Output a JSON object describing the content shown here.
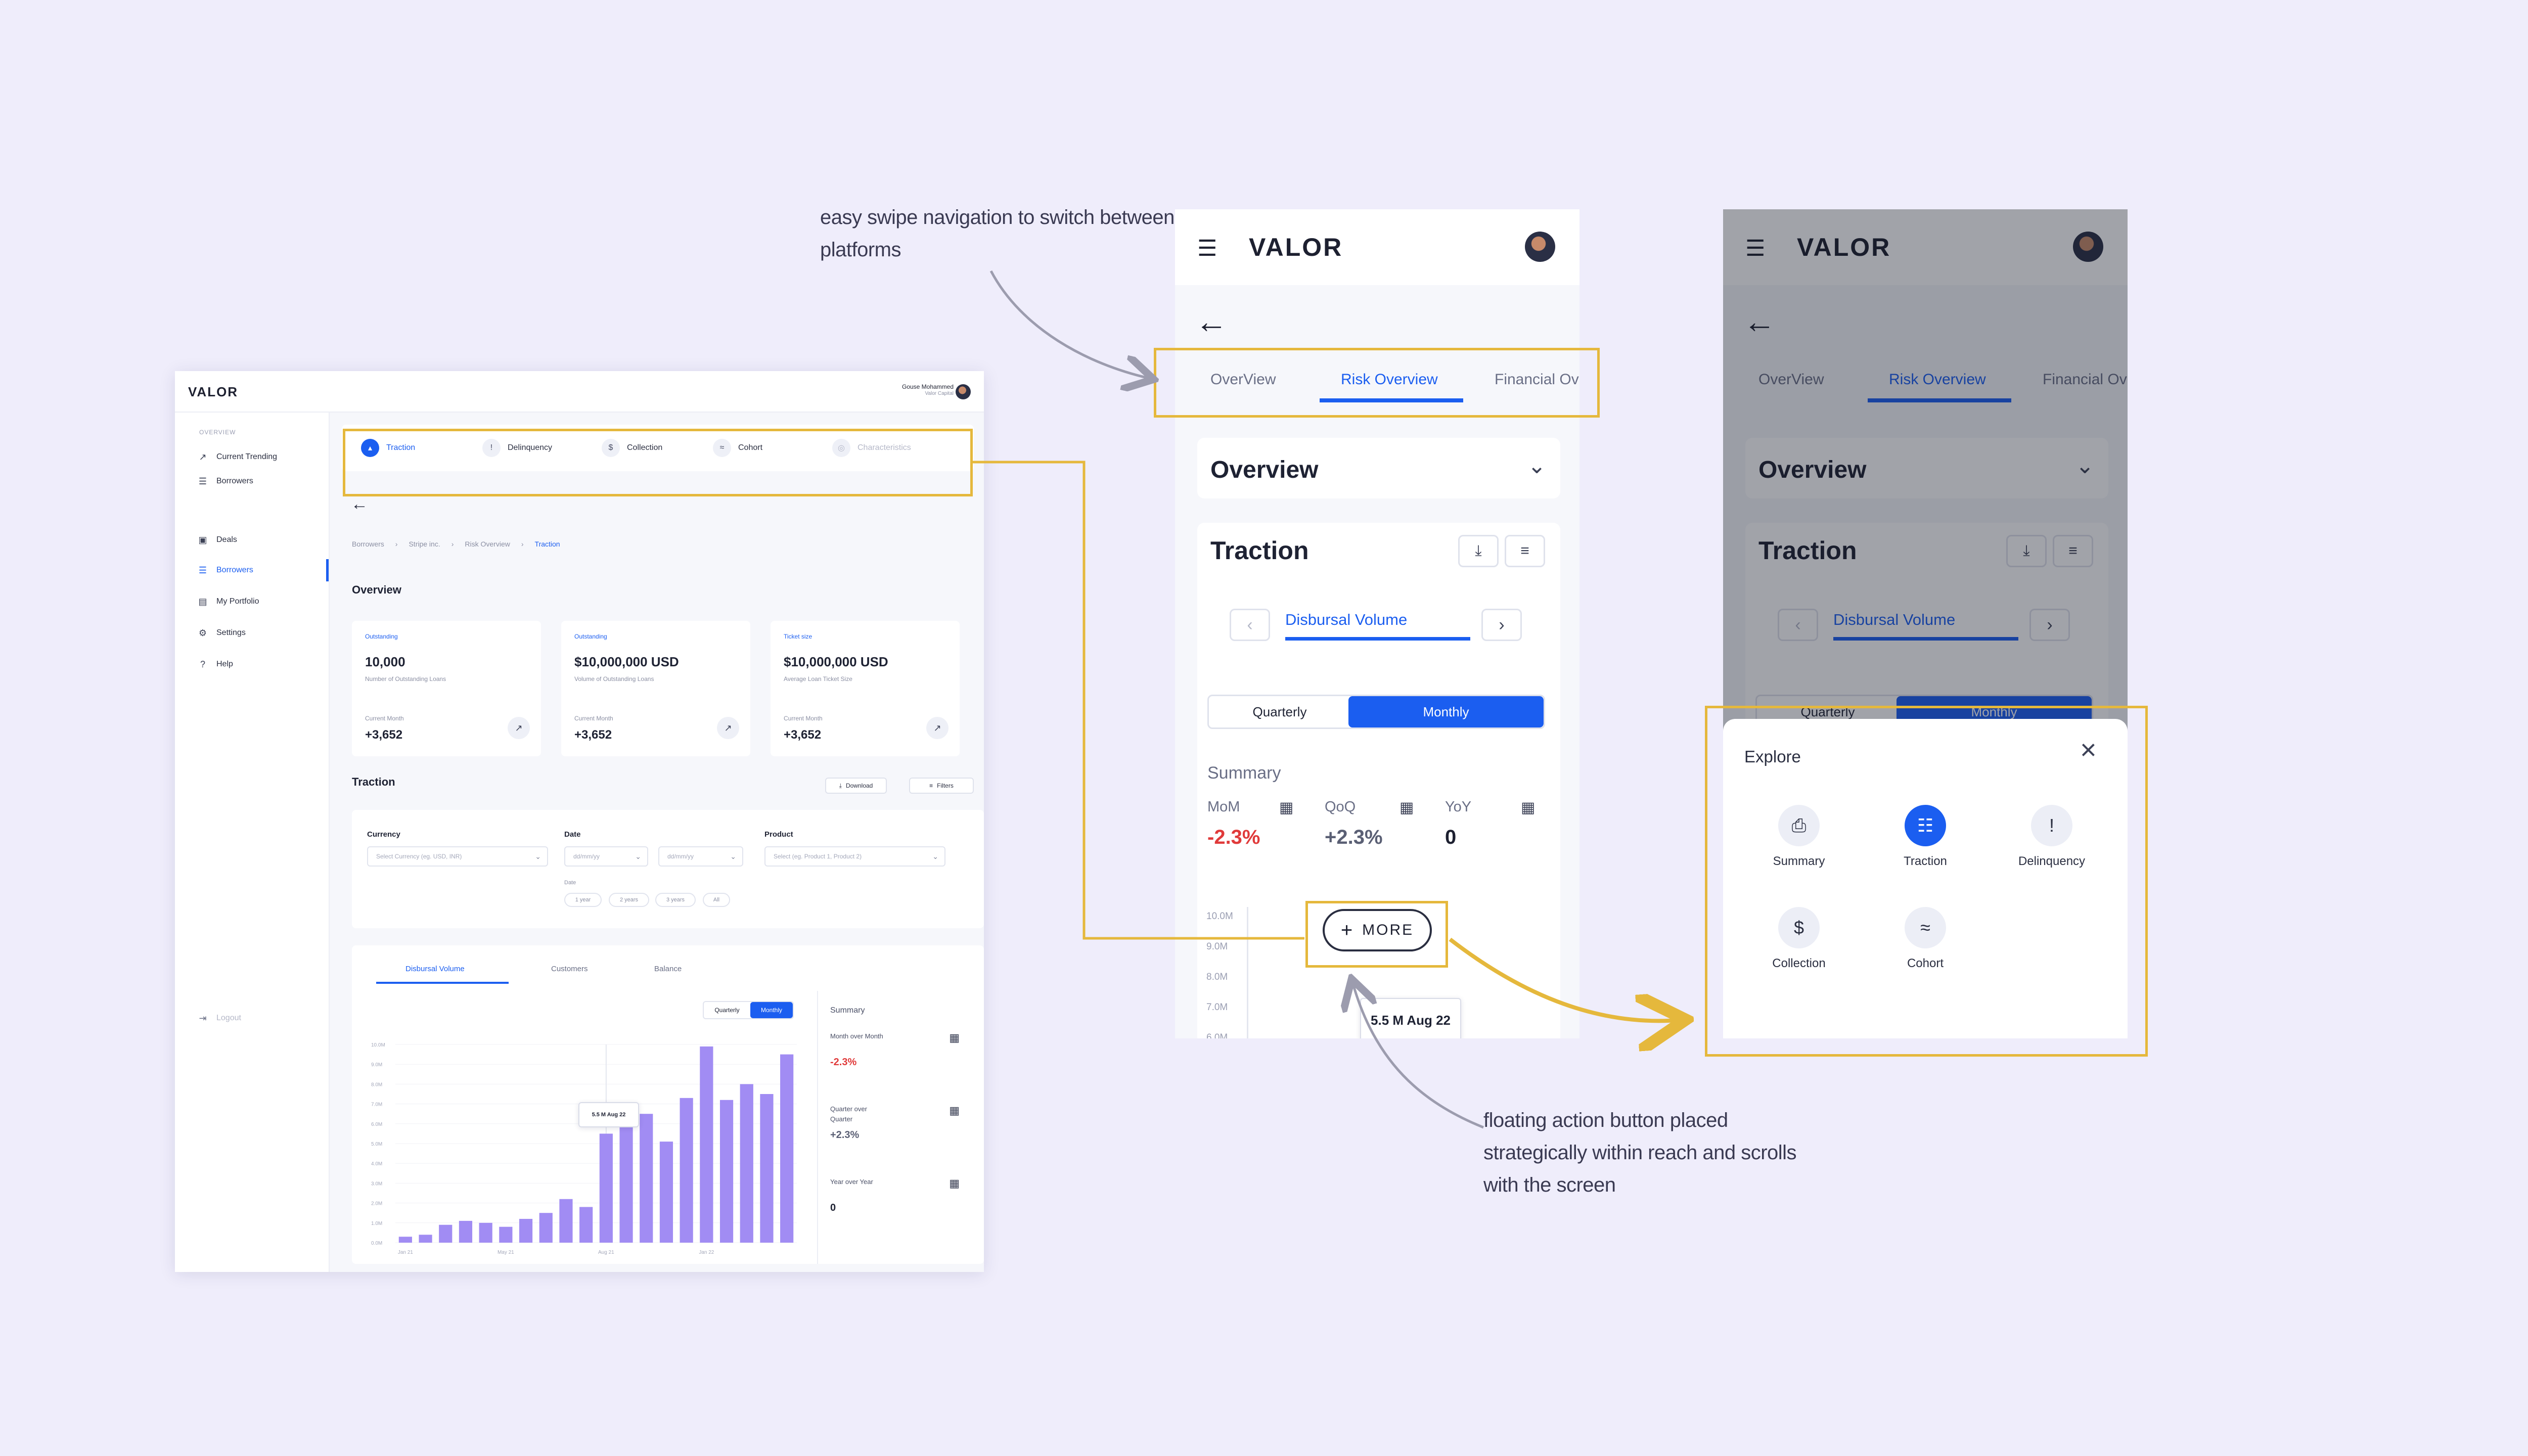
{
  "annotations": {
    "swipe_note_line1": "easy swipe navigation to switch between",
    "swipe_note_line2": "platforms",
    "fab_note_line1": "floating action button placed",
    "fab_note_line2": "strategically within reach and scrolls",
    "fab_note_line3": "with the screen",
    "highlight_color": "#e5b83c"
  },
  "colors": {
    "accent": "#1b5ef0",
    "bar": "#a18cf3",
    "negative": "#e03a3a",
    "background": "#efedfb"
  },
  "desktop": {
    "logo": "VALOR",
    "user_name": "Gouse Mohammed",
    "user_sub": "Valor Capital",
    "sidebar": {
      "section_label": "OVERVIEW",
      "items": [
        {
          "label": "Current Trending",
          "icon": "trend-icon"
        },
        {
          "label": "Borrowers",
          "icon": "list-icon"
        },
        {
          "label": "Deals",
          "icon": "deals-icon"
        },
        {
          "label": "Borrowers",
          "icon": "list-icon"
        },
        {
          "label": "My Portfolio",
          "icon": "portfolio-icon"
        },
        {
          "label": "Settings",
          "icon": "gear-icon"
        },
        {
          "label": "Help",
          "icon": "help-icon"
        }
      ],
      "logout": "Logout"
    },
    "tabs": [
      "Traction",
      "Delinquency",
      "Collection",
      "Cohort",
      "Characteristics"
    ],
    "breadcrumb": [
      "Borrowers",
      "Stripe inc.",
      "Risk Overview",
      "Traction"
    ],
    "overview_title": "Overview",
    "cards": [
      {
        "kicker": "Outstanding",
        "value": "10,000",
        "sub": "Number of Outstanding Loans",
        "month_label": "Current Month",
        "month_value": "+3,652"
      },
      {
        "kicker": "Outstanding",
        "value": "$10,000,000 USD",
        "sub": "Volume of Outstanding Loans",
        "month_label": "Current Month",
        "month_value": "+3,652"
      },
      {
        "kicker": "Ticket size",
        "value": "$10,000,000 USD",
        "sub": "Average Loan Ticket Size",
        "month_label": "Current Month",
        "month_value": "+3,652"
      }
    ],
    "traction_title": "Traction",
    "download_label": "Download",
    "filters_label": "Filters",
    "filters": {
      "currency_label": "Currency",
      "currency_placeholder": "Select Currency (eg. USD, INR)",
      "date_label": "Date",
      "date_from": "dd/mm/yy",
      "date_to": "dd/mm/yy",
      "date_sub": "Date",
      "product_label": "Product",
      "product_placeholder": "Select (eg. Product 1, Product 2)",
      "presets": [
        "1 year",
        "2 years",
        "3 years",
        "All"
      ]
    },
    "chart_tabs": [
      "Disbursal Volume",
      "Customers",
      "Balance"
    ],
    "period_quarterly": "Quarterly",
    "period_monthly": "Monthly",
    "tooltip": "5.5 M Aug 22",
    "summary": {
      "title": "Summary",
      "mom_label": "Month over Month",
      "mom_value": "-2.3%",
      "qoq_label": "Quarter over Quarter",
      "qoq_value": "+2.3%",
      "yoy_label": "Year over Year",
      "yoy_value": "0"
    },
    "chart_data": {
      "type": "bar",
      "title": "Disbursal Volume",
      "y_tick_labels": [
        "10.0M",
        "9.0M",
        "8.0M",
        "7.0M",
        "6.0M",
        "5.0M",
        "4.0M",
        "3.0M",
        "2.0M",
        "1.0M",
        "0.0M"
      ],
      "ylim": [
        0,
        10
      ],
      "x_tick_labels": [
        "Jan 21",
        "May 21",
        "Aug 21",
        "Jan 22"
      ],
      "values": [
        0.3,
        0.4,
        0.9,
        1.1,
        1.0,
        0.8,
        1.2,
        1.5,
        2.2,
        1.8,
        5.5,
        5.9,
        6.5,
        5.1,
        7.3,
        9.9,
        7.2,
        8.0,
        7.5,
        9.5
      ]
    }
  },
  "mobile": {
    "logo": "VALOR",
    "tabs": [
      "OverView",
      "Risk Overview",
      "Financial Ov"
    ],
    "overview_title": "Overview",
    "traction_title": "Traction",
    "metric_tab": "Disbursal Volume",
    "period_quarterly": "Quarterly",
    "period_monthly": "Monthly",
    "summary_title": "Summary",
    "metrics": [
      {
        "label": "MoM",
        "value": "-2.3%"
      },
      {
        "label": "QoQ",
        "value": "+2.3%"
      },
      {
        "label": "YoY",
        "value": "0"
      }
    ],
    "y_ticks": [
      "10.0M",
      "9.0M",
      "8.0M",
      "7.0M",
      "6.0M"
    ],
    "more_label": "MORE",
    "tooltip": "5.5 M Aug 22",
    "explore": {
      "title": "Explore",
      "options": [
        {
          "label": "Summary",
          "icon": "summary-icon"
        },
        {
          "label": "Traction",
          "icon": "traction-icon"
        },
        {
          "label": "Delinquency",
          "icon": "delinquency-icon"
        },
        {
          "label": "Collection",
          "icon": "collection-icon"
        },
        {
          "label": "Cohort",
          "icon": "cohort-icon"
        }
      ]
    }
  }
}
